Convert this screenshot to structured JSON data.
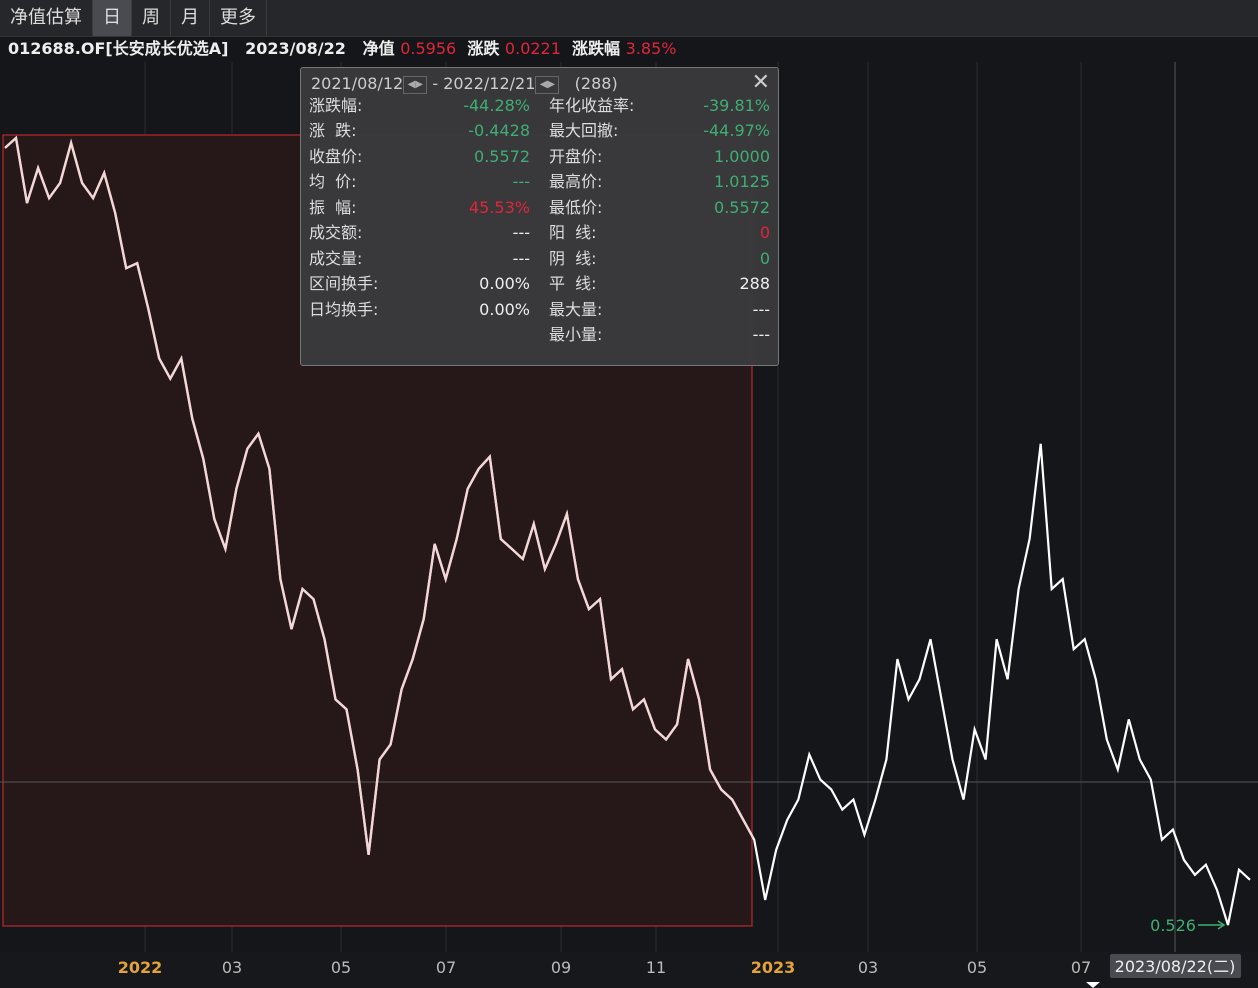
{
  "tabs": [
    "净值估算",
    "日",
    "周",
    "月",
    "更多"
  ],
  "info": {
    "code": "012688.OF[长安成长优选A]",
    "date": "2023/08/22",
    "nav_label": "净值",
    "nav": "0.5956",
    "change_label": "涨跌",
    "change": "0.0221",
    "pct_label": "涨跌幅",
    "pct": "3.85%"
  },
  "popup": {
    "start": "2021/08/12",
    "sep": "-",
    "end": "2022/12/21",
    "count": "(288)",
    "left": [
      {
        "label": "涨跌幅:",
        "value": "-44.28%",
        "color": "#3fae74"
      },
      {
        "label": "涨  跌:",
        "value": "-0.4428",
        "color": "#3fae74"
      },
      {
        "label": "收盘价:",
        "value": "0.5572",
        "color": "#3fae74"
      },
      {
        "label": "均  价:",
        "value": "---",
        "color": "#3fae74"
      },
      {
        "label": "振  幅:",
        "value": "45.53%",
        "color": "#e0263a"
      },
      {
        "label": "成交额:",
        "value": "---",
        "color": "#eeeeee"
      },
      {
        "label": "成交量:",
        "value": "---",
        "color": "#eeeeee"
      },
      {
        "label": "区间换手:",
        "value": "0.00%",
        "color": "#eeeeee"
      },
      {
        "label": "日均换手:",
        "value": "0.00%",
        "color": "#eeeeee"
      }
    ],
    "right": [
      {
        "label": "年化收益率:",
        "value": "-39.81%",
        "color": "#3fae74"
      },
      {
        "label": "最大回撤:",
        "value": "-44.97%",
        "color": "#3fae74"
      },
      {
        "label": "开盘价:",
        "value": "1.0000",
        "color": "#3fae74"
      },
      {
        "label": "最高价:",
        "value": "1.0125",
        "color": "#3fae74"
      },
      {
        "label": "最低价:",
        "value": "0.5572",
        "color": "#3fae74"
      },
      {
        "label": "阳  线:",
        "value": "0",
        "color": "#e0263a"
      },
      {
        "label": "阴  线:",
        "value": "0",
        "color": "#3fae74"
      },
      {
        "label": "平  线:",
        "value": "288",
        "color": "#eeeeee"
      },
      {
        "label": "最大量:",
        "value": "---",
        "color": "#eeeeee"
      },
      {
        "label": "最小量:",
        "value": "---",
        "color": "#eeeeee"
      }
    ]
  },
  "chart_data": {
    "type": "line",
    "color": "#ffffff",
    "range_color": "#f3d6d6",
    "values": [
      1.0033,
      1.0094,
      0.9695,
      0.991,
      0.9725,
      0.9818,
      1.0064,
      0.9818,
      0.9725,
      0.9879,
      0.9633,
      0.9295,
      0.9326,
      0.9049,
      0.8741,
      0.8618,
      0.8741,
      0.8372,
      0.8126,
      0.7757,
      0.7573,
      0.7942,
      0.8188,
      0.828,
      0.8065,
      0.7388,
      0.7081,
      0.7327,
      0.7265,
      0.7019,
      0.665,
      0.6589,
      0.622,
      0.5697,
      0.6281,
      0.6374,
      0.6712,
      0.6897,
      0.7143,
      0.7604,
      0.7388,
      0.7634,
      0.7942,
      0.8065,
      0.8139,
      0.7634,
      0.7573,
      0.7511,
      0.7726,
      0.745,
      0.7604,
      0.7788,
      0.7388,
      0.7204,
      0.7265,
      0.6773,
      0.6835,
      0.6589,
      0.665,
      0.6466,
      0.6404,
      0.6497,
      0.6897,
      0.665,
      0.622,
      0.6097,
      0.6035,
      0.5912,
      0.5789,
      0.542,
      0.5728,
      0.5912,
      0.6035,
      0.6312,
      0.6158,
      0.6097,
      0.5974,
      0.6035,
      0.582,
      0.6035,
      0.6281,
      0.6897,
      0.665,
      0.6773,
      0.7019,
      0.665,
      0.6281,
      0.6035,
      0.6466,
      0.6281,
      0.7019,
      0.6773,
      0.7327,
      0.7634,
      0.8218,
      0.7327,
      0.7388,
      0.6958,
      0.7019,
      0.6773,
      0.6404,
      0.622,
      0.6527,
      0.6281,
      0.6158,
      0.5789,
      0.5851,
      0.5666,
      0.5574,
      0.5636,
      0.5482,
      0.5266,
      0.5605,
      0.5543
    ],
    "x_axis_labels": [
      "2022",
      "03",
      "05",
      "07",
      "09",
      "11",
      "2023",
      "03",
      "05",
      "07"
    ],
    "min_label": "0.526",
    "cursor_date": "2023/08/22(二)"
  }
}
